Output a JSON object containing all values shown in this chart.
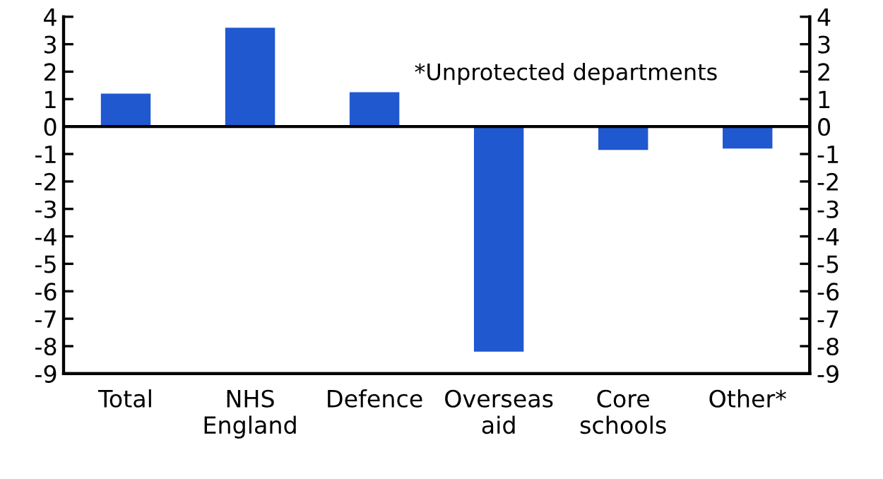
{
  "chart_data": {
    "type": "bar",
    "categories": [
      "Total",
      "NHS\nEngland",
      "Defence",
      "Overseas\naid",
      "Core\nschools",
      "Other*"
    ],
    "values": [
      1.2,
      3.6,
      1.25,
      -8.2,
      -0.85,
      -0.8
    ],
    "color": "#2058d0",
    "ylim": [
      -9,
      4
    ],
    "yticks": [
      -9,
      -8,
      -7,
      -6,
      -5,
      -4,
      -3,
      -2,
      -1,
      0,
      1,
      2,
      3,
      4
    ],
    "y2lim": [
      -9,
      4
    ],
    "y2ticks": [
      -9,
      -8,
      -7,
      -6,
      -5,
      -4,
      -3,
      -2,
      -1,
      0,
      1,
      2,
      3,
      4
    ],
    "annotations": [
      "*Unprotected departments"
    ],
    "ref_lines": [
      {
        "axis": "y",
        "value": 0,
        "color": "#000000"
      }
    ]
  }
}
